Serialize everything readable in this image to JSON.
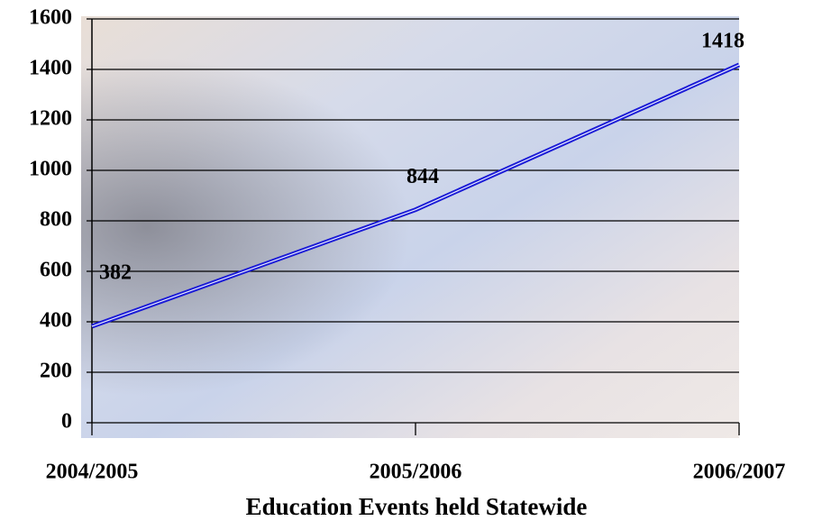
{
  "chart_data": {
    "type": "line",
    "x_label": "Education Events held Statewide",
    "categories": [
      "2004/2005",
      "2005/2006",
      "2006/2007"
    ],
    "values": [
      382,
      844,
      1418
    ],
    "color": "#1a1ad6",
    "ylim": [
      0,
      1600
    ],
    "yticks": [
      0,
      200,
      400,
      600,
      800,
      1000,
      1200,
      1400,
      1600
    ],
    "grid": true
  }
}
